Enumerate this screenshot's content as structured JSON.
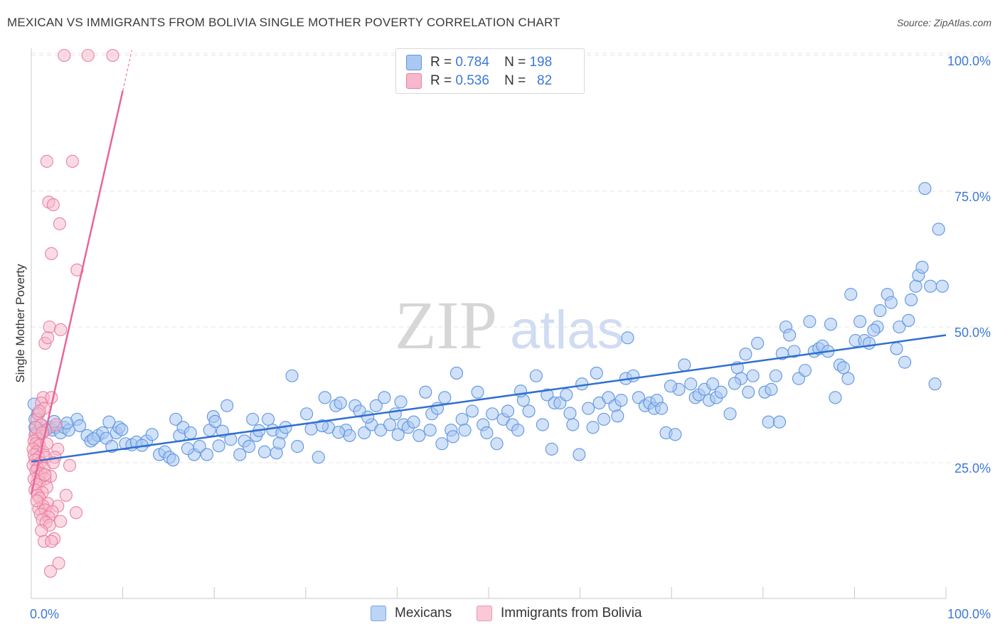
{
  "title": "MEXICAN VS IMMIGRANTS FROM BOLIVIA SINGLE MOTHER POVERTY CORRELATION CHART",
  "source": "Source: ZipAtlas.com",
  "watermark": {
    "part1": "ZIP",
    "part2": "atlas"
  },
  "stats": [
    {
      "r_label": "R =",
      "r_value": "0.784",
      "n_label": "N =",
      "n_value": "198"
    },
    {
      "r_label": "R =",
      "r_value": "0.536",
      "n_label": "N =",
      "n_value": "82"
    }
  ],
  "colors": {
    "mexicans_fill": "#a9c8f2",
    "mexicans_stroke": "#5f95e0",
    "mexicans_line": "#2f6fd0",
    "bolivia_fill": "#f6b8ca",
    "bolivia_stroke": "#ec7fa0",
    "bolivia_line": "#e8659a",
    "axis_label": "#3c78d8",
    "grid": "#e4e4e4"
  },
  "chart_data": {
    "type": "scatter",
    "title": "MEXICAN VS IMMIGRANTS FROM BOLIVIA SINGLE MOTHER POVERTY CORRELATION CHART",
    "xlabel": "",
    "ylabel": "Single Mother Poverty",
    "xlim": [
      0,
      100
    ],
    "ylim": [
      0,
      100
    ],
    "x_tick_labels": [
      "0.0%",
      "100.0%"
    ],
    "y_tick_labels": [
      "25.0%",
      "50.0%",
      "75.0%",
      "100.0%"
    ],
    "y_ticks": [
      25,
      50,
      75,
      100
    ],
    "grid": true,
    "legend_position": "bottom-center",
    "series": [
      {
        "name": "Mexicans",
        "r": 0.784,
        "n": 198,
        "trend": {
          "x": [
            0,
            100
          ],
          "y": [
            25.2,
            48.5
          ]
        },
        "points": [
          [
            0.3,
            35.8
          ],
          [
            0.4,
            33
          ],
          [
            0.4,
            31.5
          ],
          [
            0.5,
            30.5
          ],
          [
            1,
            32
          ],
          [
            1.5,
            31
          ],
          [
            2,
            31.5
          ],
          [
            2.3,
            31
          ],
          [
            2.7,
            31.5
          ],
          [
            3.2,
            30.5
          ],
          [
            3.6,
            31.5
          ],
          [
            4.1,
            31
          ],
          [
            5,
            33
          ],
          [
            5.3,
            31.8
          ],
          [
            6.1,
            30
          ],
          [
            6.5,
            29
          ],
          [
            7.3,
            30
          ],
          [
            7.8,
            30.5
          ],
          [
            8.2,
            29.5
          ],
          [
            8.8,
            28
          ],
          [
            9.3,
            30.5
          ],
          [
            9.6,
            31.5
          ],
          [
            10.3,
            28.5
          ],
          [
            11,
            28.3
          ],
          [
            11.5,
            28.8
          ],
          [
            12.6,
            29
          ],
          [
            13.2,
            30.2
          ],
          [
            14,
            26.5
          ],
          [
            14.6,
            27
          ],
          [
            15.1,
            26
          ],
          [
            15.5,
            25.5
          ],
          [
            15.8,
            33
          ],
          [
            16.2,
            30
          ],
          [
            16.6,
            31.5
          ],
          [
            17.4,
            30.5
          ],
          [
            17.8,
            26.5
          ],
          [
            18.4,
            28
          ],
          [
            19.2,
            26.5
          ],
          [
            19.5,
            31
          ],
          [
            19.9,
            33.5
          ],
          [
            20.5,
            28.1
          ],
          [
            20.9,
            30.8
          ],
          [
            21.4,
            35.5
          ],
          [
            21.8,
            29.3
          ],
          [
            22.8,
            26.5
          ],
          [
            23.3,
            29
          ],
          [
            23.8,
            28
          ],
          [
            24.2,
            33
          ],
          [
            24.6,
            30
          ],
          [
            25.5,
            27
          ],
          [
            25.9,
            33
          ],
          [
            26.4,
            31
          ],
          [
            26.8,
            26.8
          ],
          [
            27.4,
            30.5
          ],
          [
            27.8,
            31.5
          ],
          [
            28.5,
            41
          ],
          [
            29.1,
            28
          ],
          [
            30.1,
            34
          ],
          [
            30.6,
            31.2
          ],
          [
            31.4,
            26
          ],
          [
            32.1,
            37
          ],
          [
            32.5,
            31.5
          ],
          [
            33.3,
            35.5
          ],
          [
            33.8,
            36
          ],
          [
            34.4,
            31
          ],
          [
            34.8,
            30
          ],
          [
            35.4,
            35.5
          ],
          [
            35.9,
            34.5
          ],
          [
            36.4,
            30.5
          ],
          [
            37.2,
            32
          ],
          [
            37.7,
            35.5
          ],
          [
            38.2,
            31
          ],
          [
            38.6,
            37
          ],
          [
            39.2,
            32
          ],
          [
            39.8,
            34
          ],
          [
            40.1,
            30.2
          ],
          [
            40.7,
            32
          ],
          [
            41.2,
            31.5
          ],
          [
            41.8,
            32.5
          ],
          [
            42.4,
            30
          ],
          [
            43.1,
            38
          ],
          [
            43.6,
            31
          ],
          [
            43.8,
            34
          ],
          [
            44.4,
            35
          ],
          [
            44.9,
            28.5
          ],
          [
            45.2,
            37
          ],
          [
            45.9,
            31
          ],
          [
            46.5,
            41.5
          ],
          [
            47.1,
            33
          ],
          [
            47.4,
            31
          ],
          [
            48.2,
            34.5
          ],
          [
            48.8,
            38
          ],
          [
            49.4,
            32
          ],
          [
            49.8,
            30.5
          ],
          [
            50.4,
            34
          ],
          [
            50.9,
            28.5
          ],
          [
            51.6,
            33
          ],
          [
            52.1,
            34.5
          ],
          [
            52.6,
            32
          ],
          [
            53.2,
            31
          ],
          [
            53.8,
            36.5
          ],
          [
            54.4,
            34.5
          ],
          [
            55.2,
            41
          ],
          [
            55.9,
            32
          ],
          [
            56.4,
            37.5
          ],
          [
            56.9,
            27.5
          ],
          [
            57.2,
            36
          ],
          [
            57.8,
            36
          ],
          [
            58.5,
            37.5
          ],
          [
            59.2,
            32
          ],
          [
            59.9,
            26.5
          ],
          [
            60.2,
            39.5
          ],
          [
            60.9,
            35
          ],
          [
            61.4,
            31.5
          ],
          [
            61.8,
            41.5
          ],
          [
            62.1,
            36
          ],
          [
            62.6,
            33
          ],
          [
            63.1,
            37
          ],
          [
            63.8,
            35.5
          ],
          [
            64.5,
            36.5
          ],
          [
            65,
            40.5
          ],
          [
            65.2,
            48
          ],
          [
            65.8,
            41
          ],
          [
            66.4,
            37
          ],
          [
            67.1,
            35.5
          ],
          [
            67.6,
            36
          ],
          [
            68.1,
            35
          ],
          [
            68.4,
            36.5
          ],
          [
            68.9,
            35
          ],
          [
            69.4,
            30.5
          ],
          [
            70.4,
            30.2
          ],
          [
            70.8,
            38.5
          ],
          [
            71.4,
            43
          ],
          [
            72.1,
            39.5
          ],
          [
            72.6,
            37
          ],
          [
            73,
            37.5
          ],
          [
            73.6,
            38.5
          ],
          [
            74.1,
            36.5
          ],
          [
            74.5,
            39.5
          ],
          [
            74.9,
            37
          ],
          [
            75.4,
            38
          ],
          [
            76.4,
            34
          ],
          [
            77.2,
            42.5
          ],
          [
            77.6,
            40.5
          ],
          [
            78.1,
            45
          ],
          [
            78.4,
            38
          ],
          [
            78.9,
            41
          ],
          [
            79.4,
            47
          ],
          [
            80.2,
            38
          ],
          [
            80.6,
            32.5
          ],
          [
            80.9,
            38.5
          ],
          [
            81.4,
            41
          ],
          [
            81.8,
            32.5
          ],
          [
            82.5,
            50
          ],
          [
            82.9,
            48.5
          ],
          [
            83.4,
            45.5
          ],
          [
            83.9,
            40.5
          ],
          [
            84.6,
            42
          ],
          [
            85.1,
            51
          ],
          [
            85.6,
            45.5
          ],
          [
            86.1,
            46
          ],
          [
            86.5,
            46.5
          ],
          [
            87.4,
            50.5
          ],
          [
            87.9,
            37
          ],
          [
            88.4,
            43
          ],
          [
            88.8,
            42.5
          ],
          [
            89.3,
            40.5
          ],
          [
            89.6,
            56
          ],
          [
            90.1,
            47.5
          ],
          [
            90.6,
            51
          ],
          [
            91.1,
            47.5
          ],
          [
            91.6,
            47
          ],
          [
            92.5,
            50
          ],
          [
            92.8,
            53
          ],
          [
            93.6,
            56
          ],
          [
            94,
            54.5
          ],
          [
            94.6,
            46
          ],
          [
            94.9,
            50
          ],
          [
            95.5,
            43.5
          ],
          [
            96.2,
            55
          ],
          [
            96.7,
            57.5
          ],
          [
            97,
            59.5
          ],
          [
            97.4,
            61
          ],
          [
            97.7,
            75.5
          ],
          [
            98.3,
            57.5
          ],
          [
            98.8,
            39.5
          ],
          [
            99.2,
            68
          ],
          [
            99.6,
            57.5
          ],
          [
            0.7,
            34
          ],
          [
            1.3,
            30.7
          ],
          [
            3.9,
            32.3
          ],
          [
            6.8,
            29.4
          ],
          [
            8.5,
            32.5
          ],
          [
            12.1,
            28.2
          ],
          [
            20.1,
            32.6
          ],
          [
            27.1,
            28.6
          ],
          [
            31.8,
            31.8
          ],
          [
            36.8,
            33.4
          ],
          [
            46.1,
            29.8
          ],
          [
            53.5,
            38.2
          ],
          [
            58.9,
            34.1
          ],
          [
            64.1,
            33.6
          ],
          [
            69.9,
            39.1
          ],
          [
            76.9,
            39.6
          ],
          [
            82.1,
            45.1
          ],
          [
            87.1,
            45.5
          ],
          [
            92.1,
            49.4
          ],
          [
            95.9,
            51.2
          ],
          [
            2.5,
            32.6
          ],
          [
            9.9,
            31.1
          ],
          [
            17.1,
            27.6
          ],
          [
            24.9,
            30.9
          ],
          [
            33.6,
            30.6
          ],
          [
            40.4,
            36.2
          ]
        ]
      },
      {
        "name": "Immigrants from Bolivia",
        "r": 0.536,
        "n": 82,
        "trend": {
          "x": [
            0,
            10
          ],
          "y": [
            19.2,
            93.5
          ]
        },
        "trend_dashed": {
          "x": [
            10,
            11
          ],
          "y": [
            93.5,
            101
          ]
        },
        "points": [
          [
            3.6,
            100
          ],
          [
            6.2,
            100
          ],
          [
            8.9,
            100
          ],
          [
            1.7,
            80.5
          ],
          [
            4.5,
            80.5
          ],
          [
            1.9,
            73
          ],
          [
            2.4,
            72.5
          ],
          [
            3.1,
            69
          ],
          [
            2.2,
            63.5
          ],
          [
            5,
            60.5
          ],
          [
            2,
            50
          ],
          [
            3.2,
            49.5
          ],
          [
            1.5,
            47
          ],
          [
            1.8,
            48
          ],
          [
            1.3,
            37
          ],
          [
            1.1,
            36
          ],
          [
            2.2,
            37
          ],
          [
            1.4,
            35
          ],
          [
            0.8,
            34
          ],
          [
            0.6,
            33
          ],
          [
            1.1,
            32
          ],
          [
            1.6,
            31
          ],
          [
            0.4,
            30
          ],
          [
            0.7,
            29.5
          ],
          [
            0.3,
            29
          ],
          [
            0.5,
            28.5
          ],
          [
            0.9,
            28.2
          ],
          [
            0.2,
            27.5
          ],
          [
            0.6,
            27
          ],
          [
            1.3,
            27
          ],
          [
            2.9,
            27.5
          ],
          [
            0.3,
            26.5
          ],
          [
            0.8,
            26
          ],
          [
            1.6,
            26
          ],
          [
            2.6,
            26
          ],
          [
            0.4,
            25.5
          ],
          [
            1,
            25
          ],
          [
            0.2,
            24.5
          ],
          [
            4.2,
            24.5
          ],
          [
            0.7,
            24
          ],
          [
            1.4,
            24
          ],
          [
            0.5,
            23.5
          ],
          [
            1.1,
            23
          ],
          [
            0.8,
            22.5
          ],
          [
            2.1,
            22.5
          ],
          [
            0.3,
            22
          ],
          [
            1.5,
            22
          ],
          [
            0.9,
            21.5
          ],
          [
            0.6,
            21
          ],
          [
            1.7,
            20.5
          ],
          [
            0.4,
            20
          ],
          [
            1.2,
            19.5
          ],
          [
            0.7,
            19
          ],
          [
            3.8,
            19
          ],
          [
            0.9,
            18.5
          ],
          [
            1.8,
            17.5
          ],
          [
            1.3,
            17
          ],
          [
            2.9,
            17
          ],
          [
            0.8,
            16.5
          ],
          [
            1.5,
            16.3
          ],
          [
            2.3,
            16
          ],
          [
            4.9,
            15.8
          ],
          [
            1,
            15.5
          ],
          [
            1.9,
            15
          ],
          [
            1.2,
            14.5
          ],
          [
            3.2,
            14.2
          ],
          [
            1.6,
            14
          ],
          [
            2,
            13.5
          ],
          [
            1.1,
            12.5
          ],
          [
            2.5,
            11
          ],
          [
            1.4,
            10.5
          ],
          [
            2.2,
            10.5
          ],
          [
            3,
            6.5
          ],
          [
            2.1,
            5
          ],
          [
            0.5,
            31.5
          ],
          [
            1.2,
            30.5
          ],
          [
            2.7,
            32
          ],
          [
            0.9,
            34.5
          ],
          [
            1.5,
            22.8
          ],
          [
            0.6,
            18
          ],
          [
            1.7,
            28.5
          ],
          [
            2.4,
            25
          ]
        ]
      }
    ]
  }
}
